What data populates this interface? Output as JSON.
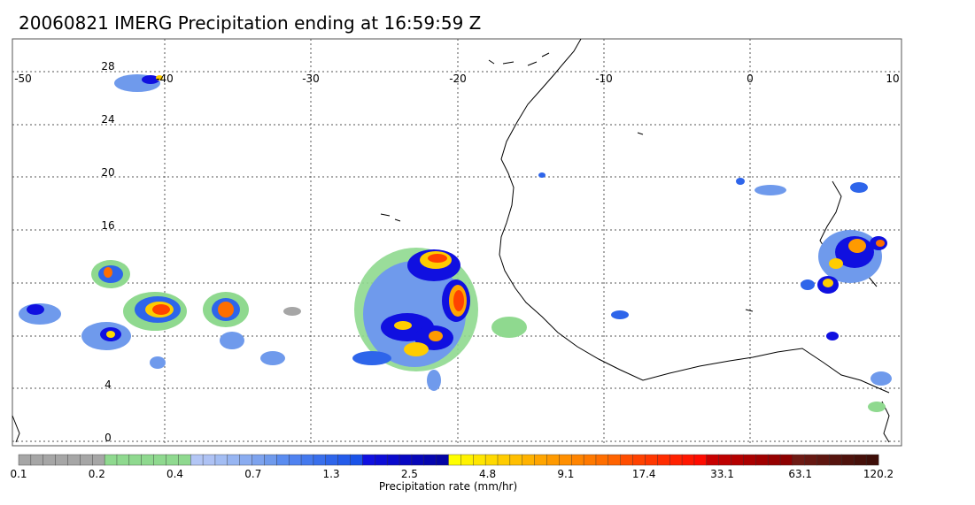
{
  "title": "20060821 IMERG Precipitation ending at 16:59:59 Z",
  "map": {
    "lon_ticks": [
      "-50",
      "-40",
      "-30",
      "-20",
      "-10",
      "0",
      "10"
    ],
    "lat_ticks": [
      "28",
      "24",
      "20",
      "16",
      "4",
      "0"
    ],
    "lon_range": [
      -50,
      10
    ],
    "lat_range": [
      0,
      28
    ],
    "grid": "dotted"
  },
  "colorbar": {
    "title": "Precipitation rate (mm/hr)",
    "tick_labels": [
      "0.1",
      "0.2",
      "0.4",
      "0.7",
      "1.3",
      "2.5",
      "4.8",
      "9.1",
      "17.4",
      "33.1",
      "63.1",
      "120.2"
    ],
    "colors": [
      "#a6a6a6",
      "#a6a6a6",
      "#a6a6a6",
      "#a6a6a6",
      "#a6a6a6",
      "#a6a6a6",
      "#a6a6a6",
      "#8fd98f",
      "#8fd98f",
      "#8fd98f",
      "#8fd98f",
      "#8fd98f",
      "#8fd98f",
      "#8fd98f",
      "#b3c6f5",
      "#aec2f4",
      "#a3bdf3",
      "#97b5f2",
      "#8aacf0",
      "#7da3ee",
      "#6f9aec",
      "#5a8cf0",
      "#4f82f0",
      "#4479ee",
      "#396fec",
      "#2e65ea",
      "#245bea",
      "#1a52e8",
      "#1010e0",
      "#0c0cd6",
      "#0909cc",
      "#0707c2",
      "#0606b8",
      "#0505ae",
      "#0404a4",
      "#ffff00",
      "#fff200",
      "#ffe600",
      "#ffd900",
      "#ffcc00",
      "#ffbf00",
      "#ffb200",
      "#ffa500",
      "#ff9a00",
      "#ff8f00",
      "#ff8400",
      "#ff7900",
      "#ff6e00",
      "#ff6300",
      "#ff4d00",
      "#ff4200",
      "#ff3700",
      "#ff2c00",
      "#ff2100",
      "#ff1600",
      "#ff0b00",
      "#c80000",
      "#be0000",
      "#b40000",
      "#aa0000",
      "#a00000",
      "#960000",
      "#8c0000",
      "#6e1a14",
      "#661812",
      "#5e1610",
      "#56140e",
      "#4e120c",
      "#46100a",
      "#3e0e08"
    ]
  }
}
